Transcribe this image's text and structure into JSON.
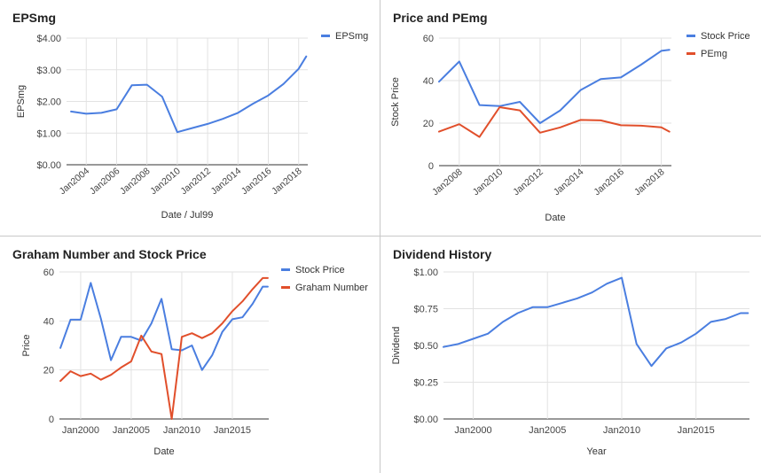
{
  "chart_data": [
    {
      "type": "line",
      "title": "EPSmg",
      "xlabel": "Date / Jul99",
      "ylabel": "EPSmg",
      "x_ticks": [
        "Jan2004",
        "Jan2006",
        "Jan2008",
        "Jan2010",
        "Jan2012",
        "Jan2014",
        "Jan2016",
        "Jan2018"
      ],
      "x_range": [
        2002.7,
        2018.6
      ],
      "ylim": [
        0,
        4
      ],
      "y_ticks": [
        0,
        1,
        2,
        3,
        4
      ],
      "y_tick_labels": [
        "$0.00",
        "$1.00",
        "$2.00",
        "$3.00",
        "$4.00"
      ],
      "legend_position": "right",
      "series": [
        {
          "name": "EPSmg",
          "color": "#4a7ee0",
          "x": [
            2003,
            2004,
            2005,
            2006,
            2007,
            2008,
            2009,
            2010,
            2011,
            2012,
            2013,
            2014,
            2015,
            2016,
            2017,
            2018,
            2018.5
          ],
          "y": [
            1.68,
            1.61,
            1.64,
            1.75,
            2.51,
            2.53,
            2.15,
            1.03,
            1.16,
            1.29,
            1.45,
            1.64,
            1.93,
            2.19,
            2.55,
            3.03,
            3.42
          ]
        }
      ]
    },
    {
      "type": "line",
      "title": "Price and PEmg",
      "xlabel": "Date",
      "ylabel": "Stock Price",
      "x_ticks": [
        "Jan2008",
        "Jan2010",
        "Jan2012",
        "Jan2014",
        "Jan2016",
        "Jan2018"
      ],
      "x_range": [
        2007,
        2018.5
      ],
      "ylim": [
        0,
        60
      ],
      "y_ticks": [
        0,
        20,
        40,
        60
      ],
      "legend_position": "right",
      "series": [
        {
          "name": "Stock Price",
          "color": "#4a7ee0",
          "x": [
            2007,
            2008,
            2009,
            2010,
            2011,
            2012,
            2013,
            2014,
            2015,
            2016,
            2017,
            2018,
            2018.4
          ],
          "y": [
            39.5,
            49,
            28.5,
            28,
            30,
            20,
            26,
            35.5,
            40.7,
            41.5,
            47.5,
            54,
            54.5
          ]
        },
        {
          "name": "PEmg",
          "color": "#e14f2b",
          "x": [
            2007,
            2008,
            2009,
            2010,
            2011,
            2012,
            2013,
            2014,
            2015,
            2016,
            2017,
            2018,
            2018.4
          ],
          "y": [
            16,
            19.5,
            13.5,
            27.5,
            26,
            15.5,
            18,
            21.5,
            21.3,
            19,
            18.8,
            18,
            16
          ]
        }
      ]
    },
    {
      "type": "line",
      "title": "Graham Number and Stock Price",
      "xlabel": "Date",
      "ylabel": "Price",
      "x_ticks": [
        "Jan2000",
        "Jan2005",
        "Jan2010",
        "Jan2015"
      ],
      "x_range": [
        1997.9,
        2018.6
      ],
      "ylim": [
        0,
        60
      ],
      "y_ticks": [
        0,
        20,
        40,
        60
      ],
      "legend_position": "right",
      "series": [
        {
          "name": "Stock Price",
          "color": "#4a7ee0",
          "x": [
            1998,
            1999,
            2000,
            2001,
            2002,
            2003,
            2004,
            2005,
            2006,
            2007,
            2008,
            2009,
            2010,
            2011,
            2012,
            2013,
            2014,
            2015,
            2016,
            2017,
            2018,
            2018.5
          ],
          "y": [
            29,
            40.5,
            40.5,
            55.5,
            41,
            24,
            33.5,
            33.5,
            32,
            39,
            49,
            28.5,
            28,
            30,
            20,
            26,
            35.5,
            40.7,
            41.5,
            47,
            54,
            54
          ]
        },
        {
          "name": "Graham Number",
          "color": "#e14f2b",
          "x": [
            1998,
            1999,
            2000,
            2001,
            2002,
            2003,
            2004,
            2005,
            2006,
            2007,
            2008,
            2009,
            2010,
            2011,
            2012,
            2013,
            2014,
            2015,
            2016,
            2017,
            2018,
            2018.5
          ],
          "y": [
            15.5,
            19.5,
            17.5,
            18.5,
            16,
            18,
            21,
            23.5,
            34,
            27.5,
            26.5,
            0,
            33.5,
            35,
            33,
            35,
            39,
            44,
            48,
            53,
            57.5,
            57.5
          ]
        }
      ]
    },
    {
      "type": "line",
      "title": "Dividend History",
      "xlabel": "Year",
      "ylabel": "Dividend",
      "x_ticks": [
        "Jan2000",
        "Jan2005",
        "Jan2010",
        "Jan2015"
      ],
      "x_range": [
        1998,
        2018.6
      ],
      "ylim": [
        0,
        1
      ],
      "y_ticks": [
        0,
        0.25,
        0.5,
        0.75,
        1
      ],
      "y_tick_labels": [
        "$0.00",
        "$0.25",
        "$0.50",
        "$0.75",
        "$1.00"
      ],
      "series": [
        {
          "color": "#4a7ee0",
          "x": [
            1998,
            1999,
            2000,
            2001,
            2002,
            2003,
            2004,
            2005,
            2006,
            2007,
            2008,
            2009,
            2010,
            2011,
            2012,
            2013,
            2014,
            2015,
            2016,
            2017,
            2018,
            2018.5
          ],
          "y": [
            0.49,
            0.51,
            0.545,
            0.58,
            0.66,
            0.72,
            0.76,
            0.76,
            0.79,
            0.82,
            0.86,
            0.92,
            0.96,
            0.51,
            0.36,
            0.48,
            0.52,
            0.58,
            0.66,
            0.68,
            0.72,
            0.72
          ]
        }
      ]
    }
  ]
}
